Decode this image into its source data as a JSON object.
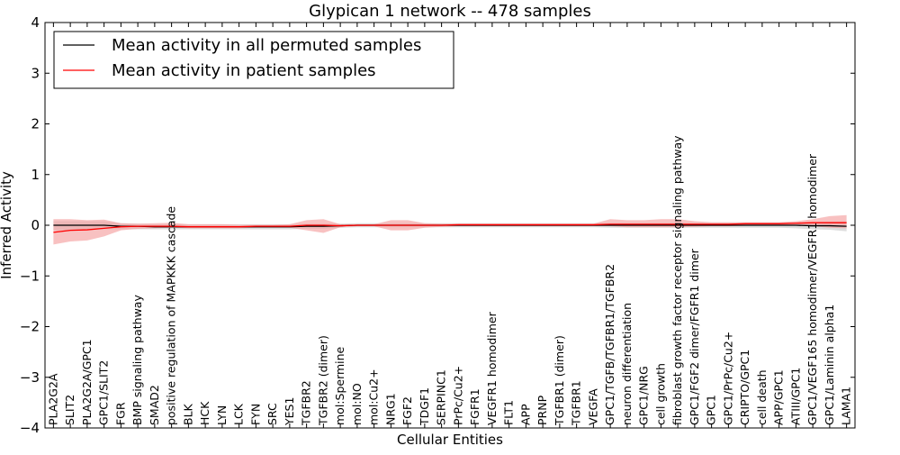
{
  "chart_data": {
    "type": "line",
    "title": "Glypican 1 network -- 478 samples",
    "xlabel": "Cellular Entities",
    "ylabel": "Inferred Activity",
    "ylim": [
      -4,
      4
    ],
    "yticks": [
      -4,
      -3,
      -2,
      -1,
      0,
      1,
      2,
      3,
      4
    ],
    "ytick_labels": [
      "−4",
      "−3",
      "−2",
      "−1",
      "0",
      "1",
      "2",
      "3",
      "4"
    ],
    "grid": false,
    "legend_position": "top-left",
    "categories": [
      "PLA2G2A",
      "SLIT2",
      "PLA2G2A/GPC1",
      "GPC1/SLIT2",
      "FGR",
      "BMP signaling pathway",
      "SMAD2",
      "positive regulation of MAPKKK cascade",
      "BLK",
      "HCK",
      "LYN",
      "LCK",
      "FYN",
      "SRC",
      "YES1",
      "TGFBR2",
      "TGFBR2 (dimer)",
      "mol:Spermine",
      "mol:NO",
      "mol:Cu2+",
      "NRG1",
      "FGF2",
      "TDGF1",
      "SERPINC1",
      "PrPc/Cu2+",
      "FGFR1",
      "VEGFR1 homodimer",
      "FLT1",
      "APP",
      "PRNP",
      "TGFBR1 (dimer)",
      "TGFBR1",
      "VEGFA",
      "GPC1/TGFB/TGFBR1/TGFBR2",
      "neuron differentiation",
      "GPC1/NRG",
      "cell growth",
      "fibroblast growth factor receptor signaling pathway",
      "GPC1/FGF2 dimer/FGFR1 dimer",
      "GPC1",
      "GPC1/PrPc/Cu2+",
      "CRIPTO/GPC1",
      "cell death",
      "APP/GPC1",
      "ATIII/GPC1",
      "GPC1/VEGF165 homodimer/VEGFR1 homodimer",
      "GPC1/Laminin alpha1",
      "LAMA1"
    ],
    "series": [
      {
        "name": "Mean activity in all permuted samples",
        "color": "#000000",
        "band_color": "#c8c8c8",
        "values": [
          0.0,
          0.0,
          0.0,
          0.0,
          -0.02,
          -0.02,
          -0.03,
          -0.03,
          -0.03,
          -0.03,
          -0.03,
          -0.03,
          -0.03,
          -0.03,
          -0.03,
          -0.02,
          -0.02,
          -0.01,
          0.0,
          0.0,
          0.0,
          0.0,
          0.0,
          0.0,
          0.0,
          0.0,
          0.0,
          0.0,
          0.0,
          0.0,
          0.0,
          0.0,
          0.0,
          0.0,
          0.0,
          0.0,
          0.0,
          0.0,
          0.0,
          0.0,
          0.0,
          0.0,
          0.0,
          0.0,
          0.0,
          -0.01,
          -0.01,
          -0.02
        ],
        "lower": [
          -0.1,
          -0.1,
          -0.09,
          -0.08,
          -0.08,
          -0.08,
          -0.08,
          -0.08,
          -0.08,
          -0.08,
          -0.08,
          -0.08,
          -0.08,
          -0.08,
          -0.08,
          -0.07,
          -0.07,
          -0.05,
          -0.04,
          -0.04,
          -0.04,
          -0.04,
          -0.04,
          -0.04,
          -0.04,
          -0.04,
          -0.04,
          -0.04,
          -0.04,
          -0.04,
          -0.04,
          -0.04,
          -0.04,
          -0.05,
          -0.05,
          -0.05,
          -0.05,
          -0.05,
          -0.05,
          -0.05,
          -0.05,
          -0.05,
          -0.05,
          -0.05,
          -0.06,
          -0.08,
          -0.09,
          -0.12
        ],
        "upper": [
          0.08,
          0.08,
          0.08,
          0.08,
          0.04,
          0.03,
          0.02,
          0.02,
          0.02,
          0.02,
          0.02,
          0.02,
          0.02,
          0.02,
          0.02,
          0.03,
          0.03,
          0.03,
          0.04,
          0.04,
          0.04,
          0.04,
          0.04,
          0.04,
          0.04,
          0.04,
          0.04,
          0.04,
          0.04,
          0.04,
          0.04,
          0.04,
          0.04,
          0.05,
          0.05,
          0.05,
          0.05,
          0.05,
          0.05,
          0.05,
          0.05,
          0.05,
          0.05,
          0.05,
          0.05,
          0.06,
          0.07,
          0.08
        ]
      },
      {
        "name": "Mean activity in patient samples",
        "color": "#ff0000",
        "band_color": "#f4a0a0",
        "values": [
          -0.14,
          -0.1,
          -0.09,
          -0.06,
          -0.03,
          -0.02,
          -0.02,
          -0.02,
          -0.03,
          -0.03,
          -0.03,
          -0.03,
          -0.02,
          -0.02,
          -0.02,
          0.0,
          0.0,
          -0.01,
          0.0,
          0.0,
          0.0,
          0.0,
          0.0,
          0.0,
          0.01,
          0.01,
          0.01,
          0.01,
          0.01,
          0.01,
          0.01,
          0.01,
          0.01,
          0.02,
          0.02,
          0.02,
          0.02,
          0.02,
          0.02,
          0.02,
          0.02,
          0.03,
          0.03,
          0.03,
          0.04,
          0.05,
          0.05,
          0.05
        ],
        "lower": [
          -0.38,
          -0.32,
          -0.3,
          -0.22,
          -0.1,
          -0.07,
          -0.06,
          -0.05,
          -0.06,
          -0.06,
          -0.06,
          -0.06,
          -0.05,
          -0.05,
          -0.05,
          -0.1,
          -0.15,
          -0.04,
          -0.02,
          -0.02,
          -0.1,
          -0.1,
          -0.05,
          -0.03,
          -0.02,
          -0.02,
          -0.02,
          -0.02,
          -0.02,
          -0.02,
          -0.02,
          -0.02,
          -0.02,
          -0.02,
          -0.04,
          -0.04,
          -0.04,
          -0.04,
          -0.03,
          -0.02,
          -0.02,
          -0.01,
          -0.01,
          -0.01,
          -0.01,
          -0.02,
          -0.05,
          -0.06
        ],
        "upper": [
          0.12,
          0.12,
          0.1,
          0.11,
          0.04,
          0.03,
          0.04,
          0.05,
          0.02,
          0.02,
          0.02,
          0.01,
          0.01,
          0.01,
          0.02,
          0.1,
          0.12,
          0.02,
          0.02,
          0.02,
          0.1,
          0.1,
          0.04,
          0.03,
          0.03,
          0.03,
          0.03,
          0.03,
          0.03,
          0.03,
          0.03,
          0.03,
          0.03,
          0.12,
          0.1,
          0.1,
          0.12,
          0.12,
          0.08,
          0.06,
          0.06,
          0.06,
          0.06,
          0.06,
          0.08,
          0.12,
          0.18,
          0.2
        ]
      }
    ]
  }
}
